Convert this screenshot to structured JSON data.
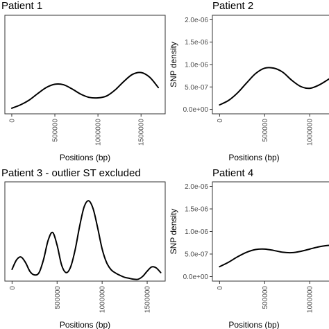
{
  "chart_data": [
    {
      "type": "line",
      "title": "Patient 1",
      "xlabel": "Positions (bp)",
      "ylabel": "",
      "x_ticks": [
        0,
        500000,
        1000000,
        1500000
      ],
      "x_tick_labels": [
        "0",
        "500000",
        "1000000",
        "1500000"
      ],
      "xlim": [
        -80000,
        1780000
      ],
      "y_ticks": [],
      "y_tick_labels": [],
      "ylim": [
        0,
        2.1e-06
      ],
      "grid": false,
      "series": [
        {
          "x": [
            0,
            100000,
            200000,
            300000,
            400000,
            500000,
            600000,
            700000,
            800000,
            900000,
            1000000,
            1100000,
            1200000,
            1300000,
            1400000,
            1500000,
            1600000,
            1700000
          ],
          "y": [
            1.2e-07,
            1.9e-07,
            2.9e-07,
            4.3e-07,
            5.6e-07,
            6.3e-07,
            6.2e-07,
            5.3e-07,
            4.2e-07,
            3.5e-07,
            3.4e-07,
            3.8e-07,
            5.1e-07,
            6.9e-07,
            8.4e-07,
            8.8e-07,
            7.8e-07,
            5.6e-07
          ]
        }
      ]
    },
    {
      "type": "line",
      "title": "Patient 2",
      "xlabel": "Positions (bp)",
      "ylabel": "SNP density",
      "x_ticks": [
        0,
        500000,
        1000000
      ],
      "x_tick_labels": [
        "0",
        "500000",
        "1000000"
      ],
      "xlim": [
        -80000,
        1260000
      ],
      "y_ticks": [
        0,
        5e-07,
        1e-06,
        1.5e-06,
        2e-06
      ],
      "y_tick_labels": [
        "0.0e+00",
        "5.0e-07",
        "1.0e-06",
        "1.5e-06",
        "2.0e-06"
      ],
      "ylim": [
        -1e-07,
        2.1e-06
      ],
      "grid": false,
      "series": [
        {
          "x": [
            0,
            100000,
            200000,
            300000,
            400000,
            500000,
            600000,
            700000,
            800000,
            900000,
            1000000,
            1100000,
            1200000,
            1260000
          ],
          "y": [
            1e-07,
            2e-07,
            3.7e-07,
            5.9e-07,
            8e-07,
            9.2e-07,
            9.2e-07,
            8.3e-07,
            6.5e-07,
            5.1e-07,
            4.7e-07,
            5.4e-07,
            6.6e-07,
            7.4e-07
          ]
        }
      ]
    },
    {
      "type": "line",
      "title": "Patient 3 - outlier ST excluded",
      "xlabel": "Positions (bp)",
      "ylabel": "",
      "x_ticks": [
        0,
        500000,
        1000000,
        1500000
      ],
      "x_tick_labels": [
        "0",
        "500000",
        "1000000",
        "1500000"
      ],
      "xlim": [
        -80000,
        1700000
      ],
      "y_ticks": [],
      "y_tick_labels": [],
      "ylim": [
        0,
        2.1e-06
      ],
      "grid": false,
      "series": [
        {
          "x": [
            0,
            50000,
            100000,
            150000,
            200000,
            250000,
            300000,
            350000,
            400000,
            450000,
            500000,
            550000,
            600000,
            650000,
            700000,
            750000,
            800000,
            850000,
            900000,
            950000,
            1000000,
            1050000,
            1100000,
            1150000,
            1200000,
            1250000,
            1300000,
            1350000,
            1400000,
            1450000,
            1500000,
            1550000,
            1600000,
            1650000
          ],
          "y": [
            2.5e-07,
            4.5e-07,
            5.1e-07,
            3.9e-07,
            2e-07,
            1.3e-07,
            1.8e-07,
            4.6e-07,
            8.6e-07,
            1.03e-06,
            7.6e-07,
            3.4e-07,
            1.8e-07,
            3e-07,
            6.6e-07,
            1.16e-06,
            1.57e-06,
            1.7e-06,
            1.53e-06,
            1.13e-06,
            6.8e-07,
            3.9e-07,
            2.4e-07,
            1.7e-07,
            1.2e-07,
            8e-08,
            6e-08,
            4e-08,
            4e-08,
            1e-07,
            2.1e-07,
            3e-07,
            2.8e-07,
            1.8e-07
          ]
        }
      ]
    },
    {
      "type": "line",
      "title": "Patient 4",
      "xlabel": "Positions (bp)",
      "ylabel": "SNP density",
      "x_ticks": [
        0,
        500000,
        1000000
      ],
      "x_tick_labels": [
        "0",
        "500000",
        "1000000"
      ],
      "xlim": [
        -80000,
        1260000
      ],
      "y_ticks": [
        0,
        5e-07,
        1e-06,
        1.5e-06,
        2e-06
      ],
      "y_tick_labels": [
        "0.0e+00",
        "5.0e-07",
        "1.0e-06",
        "1.5e-06",
        "2.0e-06"
      ],
      "ylim": [
        -1e-07,
        2.1e-06
      ],
      "grid": false,
      "series": [
        {
          "x": [
            0,
            100000,
            200000,
            300000,
            400000,
            500000,
            600000,
            700000,
            800000,
            900000,
            1000000,
            1100000,
            1200000,
            1260000
          ],
          "y": [
            2.2e-07,
            3.2e-07,
            4.4e-07,
            5.4e-07,
            6e-07,
            6.1e-07,
            5.8e-07,
            5.4e-07,
            5.3e-07,
            5.6e-07,
            6.1e-07,
            6.6e-07,
            6.9e-07,
            7e-07
          ]
        }
      ]
    }
  ]
}
